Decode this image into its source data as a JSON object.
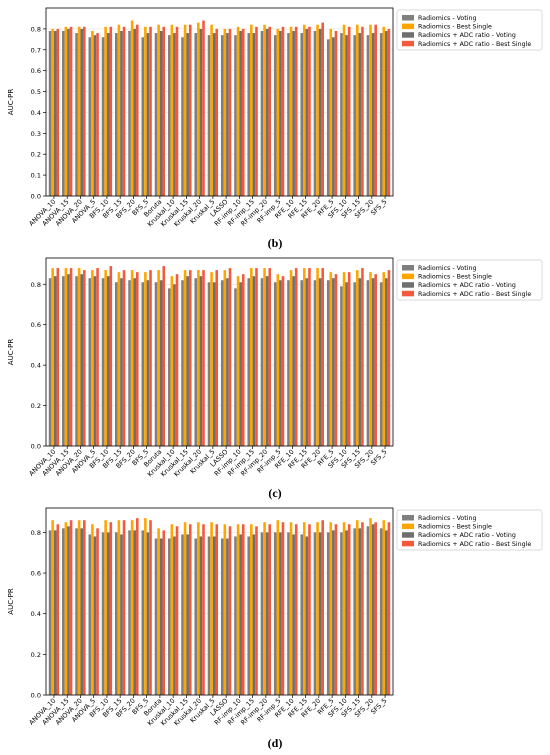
{
  "chart_data": [
    {
      "type": "bar",
      "panel": "(b)",
      "ylabel": "AUC-PR",
      "ylim": [
        0.0,
        0.9
      ],
      "yticks": [
        "0.0",
        "0.1",
        "0.2",
        "0.3",
        "0.4",
        "0.5",
        "0.6",
        "0.7",
        "0.8"
      ],
      "grid": true,
      "legend_position": "top-right",
      "categories": [
        "ANOVA_10",
        "ANOVA_15",
        "ANOVA_20",
        "ANOVA_5",
        "BFS_10",
        "BFS_15",
        "BFS_20",
        "BFS_5",
        "Boruta",
        "Kruskal_10",
        "Kruskal_15",
        "Kruskal_20",
        "Kruskal_5",
        "LASSO",
        "RF-imp_10",
        "RF-imp_15",
        "RF-imp_20",
        "RF-imp_5",
        "RFE_10",
        "RFE_15",
        "RFE_20",
        "RFE_5",
        "SFS_10",
        "SFS_15",
        "SFS_20",
        "SFS_5"
      ],
      "series": [
        {
          "name": "Radiomics - Voting",
          "color": "#7f7f7f",
          "values": [
            0.79,
            0.79,
            0.78,
            0.76,
            0.76,
            0.78,
            0.79,
            0.76,
            0.78,
            0.77,
            0.76,
            0.78,
            0.77,
            0.77,
            0.77,
            0.78,
            0.79,
            0.77,
            0.78,
            0.78,
            0.79,
            0.75,
            0.78,
            0.77,
            0.77,
            0.78
          ]
        },
        {
          "name": "Radiomics - Best Single",
          "color": "#ffa500",
          "values": [
            0.8,
            0.81,
            0.81,
            0.79,
            0.81,
            0.82,
            0.84,
            0.81,
            0.82,
            0.82,
            0.82,
            0.83,
            0.82,
            0.8,
            0.81,
            0.82,
            0.82,
            0.8,
            0.81,
            0.82,
            0.82,
            0.8,
            0.82,
            0.82,
            0.82,
            0.81
          ]
        },
        {
          "name": "Radiomics + ADC ratio - Voting",
          "color": "#6f6f6f",
          "values": [
            0.79,
            0.8,
            0.8,
            0.77,
            0.78,
            0.79,
            0.8,
            0.78,
            0.79,
            0.78,
            0.78,
            0.8,
            0.78,
            0.78,
            0.79,
            0.78,
            0.8,
            0.79,
            0.79,
            0.8,
            0.8,
            0.76,
            0.77,
            0.78,
            0.78,
            0.79
          ]
        },
        {
          "name": "Radiomics + ADC ratio - Best Single",
          "color": "#f4593e",
          "values": [
            0.8,
            0.81,
            0.81,
            0.78,
            0.81,
            0.81,
            0.82,
            0.81,
            0.81,
            0.81,
            0.82,
            0.84,
            0.8,
            0.8,
            0.8,
            0.81,
            0.81,
            0.81,
            0.81,
            0.81,
            0.83,
            0.79,
            0.81,
            0.81,
            0.82,
            0.8
          ]
        }
      ]
    },
    {
      "type": "bar",
      "panel": "(c)",
      "ylabel": "AUC-PR",
      "ylim": [
        0.0,
        0.93
      ],
      "yticks": [
        "0.0",
        "0.2",
        "0.4",
        "0.6",
        "0.8"
      ],
      "grid": true,
      "legend_position": "top-right",
      "categories": [
        "ANOVA_10",
        "ANOVA_15",
        "ANOVA_20",
        "ANOVA_5",
        "BFS_10",
        "BFS_15",
        "BFS_20",
        "BFS_5",
        "Boruta",
        "Kruskal_10",
        "Kruskal_15",
        "Kruskal_20",
        "Kruskal_5",
        "LASSO",
        "RF-imp_10",
        "RF-imp_15",
        "RF-imp_20",
        "RF-imp_5",
        "RFE_10",
        "RFE_15",
        "RFE_20",
        "RFE_5",
        "SFS_10",
        "SFS_15",
        "SFS_20",
        "SFS_5"
      ],
      "series": [
        {
          "name": "Radiomics - Voting",
          "color": "#7f7f7f",
          "values": [
            0.83,
            0.84,
            0.84,
            0.83,
            0.83,
            0.81,
            0.82,
            0.81,
            0.81,
            0.78,
            0.82,
            0.83,
            0.81,
            0.82,
            0.78,
            0.83,
            0.83,
            0.81,
            0.82,
            0.82,
            0.82,
            0.82,
            0.79,
            0.81,
            0.82,
            0.81
          ]
        },
        {
          "name": "Radiomics - Best Single",
          "color": "#ffa500",
          "values": [
            0.88,
            0.88,
            0.88,
            0.87,
            0.87,
            0.86,
            0.87,
            0.86,
            0.87,
            0.84,
            0.87,
            0.87,
            0.86,
            0.87,
            0.84,
            0.88,
            0.88,
            0.85,
            0.87,
            0.88,
            0.88,
            0.86,
            0.86,
            0.87,
            0.86,
            0.86
          ]
        },
        {
          "name": "Radiomics + ADC ratio - Voting",
          "color": "#6f6f6f",
          "values": [
            0.84,
            0.85,
            0.85,
            0.84,
            0.84,
            0.83,
            0.83,
            0.82,
            0.82,
            0.8,
            0.84,
            0.84,
            0.81,
            0.83,
            0.81,
            0.84,
            0.84,
            0.82,
            0.84,
            0.83,
            0.83,
            0.83,
            0.81,
            0.83,
            0.83,
            0.83
          ]
        },
        {
          "name": "Radiomics + ADC ratio - Best Single",
          "color": "#f4593e",
          "values": [
            0.88,
            0.88,
            0.87,
            0.88,
            0.89,
            0.87,
            0.86,
            0.87,
            0.89,
            0.85,
            0.87,
            0.87,
            0.87,
            0.88,
            0.85,
            0.88,
            0.88,
            0.84,
            0.88,
            0.88,
            0.88,
            0.85,
            0.86,
            0.88,
            0.85,
            0.87
          ]
        }
      ]
    },
    {
      "type": "bar",
      "panel": "(d)",
      "ylabel": "AUC-PR",
      "ylim": [
        0.0,
        0.92
      ],
      "yticks": [
        "0.0",
        "0.2",
        "0.4",
        "0.6",
        "0.8"
      ],
      "grid": true,
      "legend_position": "top-right",
      "categories": [
        "ANOVA_10",
        "ANOVA_15",
        "ANOVA_20",
        "ANOVA_5",
        "BFS_10",
        "BFS_15",
        "BFS_20",
        "BFS_5",
        "Boruta",
        "Kruskal_10",
        "Kruskal_15",
        "Kruskal_20",
        "Kruskal_5",
        "LASSO",
        "RF-imp_10",
        "RF-imp_15",
        "RF-imp_20",
        "RF-imp_5",
        "RFE_10",
        "RFE_15",
        "RFE_20",
        "RFE_5",
        "SFS_10",
        "SFS_15",
        "SFS_20",
        "SFS_5"
      ],
      "series": [
        {
          "name": "Radiomics - Voting",
          "color": "#7f7f7f",
          "values": [
            0.81,
            0.82,
            0.82,
            0.79,
            0.8,
            0.8,
            0.81,
            0.81,
            0.77,
            0.77,
            0.79,
            0.77,
            0.78,
            0.77,
            0.78,
            0.78,
            0.8,
            0.8,
            0.8,
            0.79,
            0.8,
            0.8,
            0.8,
            0.82,
            0.83,
            0.82
          ]
        },
        {
          "name": "Radiomics - Best Single",
          "color": "#ffa500",
          "values": [
            0.86,
            0.85,
            0.86,
            0.84,
            0.86,
            0.86,
            0.86,
            0.87,
            0.82,
            0.84,
            0.85,
            0.85,
            0.85,
            0.84,
            0.84,
            0.84,
            0.85,
            0.86,
            0.85,
            0.85,
            0.85,
            0.85,
            0.85,
            0.86,
            0.87,
            0.86
          ]
        },
        {
          "name": "Radiomics + ADC ratio - Voting",
          "color": "#6f6f6f",
          "values": [
            0.81,
            0.83,
            0.82,
            0.78,
            0.8,
            0.79,
            0.81,
            0.8,
            0.77,
            0.78,
            0.79,
            0.78,
            0.78,
            0.77,
            0.79,
            0.79,
            0.8,
            0.8,
            0.79,
            0.78,
            0.8,
            0.81,
            0.81,
            0.82,
            0.84,
            0.81
          ]
        },
        {
          "name": "Radiomics + ADC ratio - Best Single",
          "color": "#f4593e",
          "values": [
            0.84,
            0.86,
            0.86,
            0.82,
            0.85,
            0.86,
            0.87,
            0.86,
            0.81,
            0.83,
            0.84,
            0.84,
            0.84,
            0.83,
            0.84,
            0.83,
            0.84,
            0.85,
            0.84,
            0.84,
            0.86,
            0.84,
            0.84,
            0.85,
            0.85,
            0.85
          ]
        }
      ]
    }
  ]
}
